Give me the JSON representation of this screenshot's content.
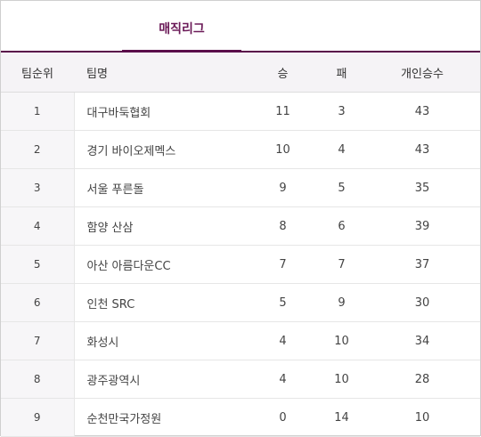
{
  "tabs": [
    {
      "label": "매직리그",
      "active": true
    }
  ],
  "table": {
    "headers": {
      "rank": "팀순위",
      "team": "팀명",
      "wins": "승",
      "losses": "패",
      "individual_wins": "개인승수"
    },
    "rows": [
      {
        "rank": "1",
        "team": "대구바둑협회",
        "wins": "11",
        "losses": "3",
        "individual_wins": "43"
      },
      {
        "rank": "2",
        "team": "경기 바이오제멕스",
        "wins": "10",
        "losses": "4",
        "individual_wins": "43"
      },
      {
        "rank": "3",
        "team": "서울 푸른돌",
        "wins": "9",
        "losses": "5",
        "individual_wins": "35"
      },
      {
        "rank": "4",
        "team": "함양 산삼",
        "wins": "8",
        "losses": "6",
        "individual_wins": "39"
      },
      {
        "rank": "5",
        "team": "아산 아름다운CC",
        "wins": "7",
        "losses": "7",
        "individual_wins": "37"
      },
      {
        "rank": "6",
        "team": "인천 SRC",
        "wins": "5",
        "losses": "9",
        "individual_wins": "30"
      },
      {
        "rank": "7",
        "team": "화성시",
        "wins": "4",
        "losses": "10",
        "individual_wins": "34"
      },
      {
        "rank": "8",
        "team": "광주광역시",
        "wins": "4",
        "losses": "10",
        "individual_wins": "28"
      },
      {
        "rank": "9",
        "team": "순천만국가정원",
        "wins": "0",
        "losses": "14",
        "individual_wins": "10"
      }
    ]
  },
  "colors": {
    "accent": "#5a0d4a",
    "tab_text": "#6b1a58",
    "header_bg": "#f5f3f6"
  }
}
